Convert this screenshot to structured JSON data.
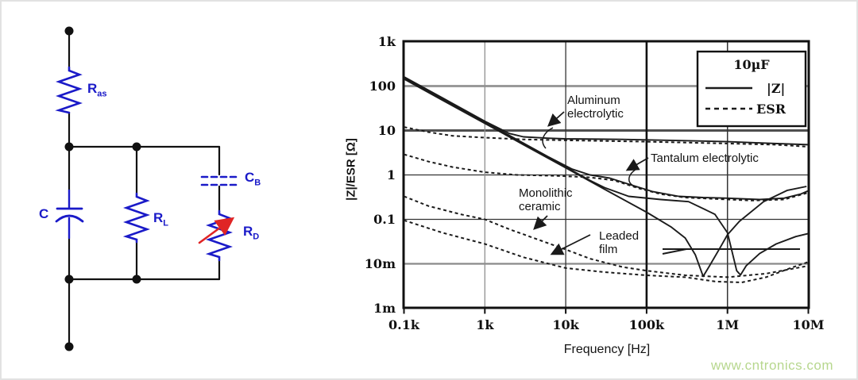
{
  "watermark": "www.cntronics.com",
  "colors": {
    "component_blue": "#1a1ac8",
    "arrow_red": "#e02525",
    "curve_black": "#1b1b1b",
    "watermark_green": "#b7d78e"
  },
  "circuit": {
    "labels": {
      "ras": {
        "main": "R",
        "sub": "as"
      },
      "c": {
        "main": "C",
        "sub": ""
      },
      "rl": {
        "main": "R",
        "sub": "L"
      },
      "cb": {
        "main": "C",
        "sub": "B"
      },
      "rd": {
        "main": "R",
        "sub": "D"
      }
    }
  },
  "chart_data": {
    "type": "line",
    "title": "",
    "xlabel": "Frequency [Hz]",
    "ylabel": "|Z|/ESR [Ω]",
    "x_scale": "log",
    "y_scale": "log",
    "xlim": [
      100,
      10000000
    ],
    "ylim": [
      0.001,
      1000
    ],
    "grid": true,
    "legend": {
      "title": "10µF",
      "items": [
        {
          "label": "|Z|",
          "style": "solid"
        },
        {
          "label": "ESR",
          "style": "dashed"
        }
      ]
    },
    "x_ticks": [
      {
        "label": "0.1k",
        "f": 100
      },
      {
        "label": "1k",
        "f": 1000
      },
      {
        "label": "10k",
        "f": 10000
      },
      {
        "label": "100k",
        "f": 100000
      },
      {
        "label": "1M",
        "f": 1000000
      },
      {
        "label": "10M",
        "f": 10000000
      }
    ],
    "y_ticks": [
      {
        "label": "1k",
        "z": 1000
      },
      {
        "label": "100",
        "z": 100
      },
      {
        "label": "10",
        "z": 10
      },
      {
        "label": "1",
        "z": 1
      },
      {
        "label": "0.1",
        "z": 0.1
      },
      {
        "label": "10m",
        "z": 0.01
      },
      {
        "label": "1m",
        "z": 0.001
      }
    ],
    "annotations": [
      {
        "id": "aluminum",
        "label": "Aluminum electrolytic"
      },
      {
        "id": "tantalum",
        "label": "Tantalum electrolytic"
      },
      {
        "id": "ceramic",
        "label": "Monolithic ceramic"
      },
      {
        "id": "film",
        "label": "Leaded film"
      }
    ],
    "series": [
      {
        "id": "aluminum-z",
        "component": "Aluminum electrolytic",
        "quantity": "|Z|",
        "style": "solid",
        "points": [
          [
            100,
            162
          ],
          [
            300,
            54
          ],
          [
            1000,
            16.2
          ],
          [
            2000,
            8.6
          ],
          [
            3000,
            7.2
          ],
          [
            6000,
            6.7
          ],
          [
            10000,
            6.5
          ],
          [
            50000,
            6.3
          ],
          [
            200000,
            6.0
          ],
          [
            1000000,
            5.6
          ],
          [
            3000000,
            5.2
          ],
          [
            10000000,
            4.8
          ]
        ]
      },
      {
        "id": "aluminum-esr",
        "component": "Aluminum electrolytic",
        "quantity": "ESR",
        "style": "dashed",
        "points": [
          [
            100,
            12
          ],
          [
            200,
            9.2
          ],
          [
            400,
            7.6
          ],
          [
            1000,
            6.9
          ],
          [
            3000,
            6.3
          ],
          [
            10000,
            6.0
          ],
          [
            100000,
            5.6
          ],
          [
            1000000,
            5.1
          ],
          [
            4000000,
            4.8
          ],
          [
            10000000,
            4.3
          ]
        ]
      },
      {
        "id": "tantalum-z",
        "component": "Tantalum electrolytic",
        "quantity": "|Z|",
        "style": "solid",
        "points": [
          [
            100,
            155
          ],
          [
            300,
            51.7
          ],
          [
            1000,
            15.5
          ],
          [
            3000,
            5.2
          ],
          [
            6000,
            2.6
          ],
          [
            12000,
            1.35
          ],
          [
            20000,
            1.0
          ],
          [
            35000,
            0.85
          ],
          [
            60000,
            0.62
          ],
          [
            120000,
            0.42
          ],
          [
            250000,
            0.33
          ],
          [
            500000,
            0.31
          ],
          [
            1000000,
            0.3
          ],
          [
            2500000,
            0.28
          ],
          [
            5000000,
            0.3
          ],
          [
            8000000,
            0.37
          ],
          [
            10000000,
            0.44
          ]
        ]
      },
      {
        "id": "tantalum-esr",
        "component": "Tantalum electrolytic",
        "quantity": "ESR",
        "style": "dashed",
        "points": [
          [
            100,
            2.9
          ],
          [
            200,
            2.0
          ],
          [
            400,
            1.5
          ],
          [
            1000,
            1.15
          ],
          [
            2500,
            1.0
          ],
          [
            8000,
            0.95
          ],
          [
            20000,
            0.88
          ],
          [
            40000,
            0.75
          ],
          [
            80000,
            0.5
          ],
          [
            150000,
            0.37
          ],
          [
            300000,
            0.31
          ],
          [
            800000,
            0.285
          ],
          [
            2000000,
            0.265
          ],
          [
            5000000,
            0.28
          ],
          [
            10000000,
            0.4
          ]
        ]
      },
      {
        "id": "ceramic-z",
        "component": "Monolithic ceramic",
        "quantity": "|Z|",
        "style": "solid",
        "points": [
          [
            100,
            150
          ],
          [
            300,
            50
          ],
          [
            1000,
            15.0
          ],
          [
            3000,
            5.0
          ],
          [
            10000,
            1.5
          ],
          [
            20000,
            0.75
          ],
          [
            30000,
            0.52
          ],
          [
            60000,
            0.33
          ],
          [
            150000,
            0.28
          ],
          [
            330000,
            0.25
          ],
          [
            700000,
            0.13
          ],
          [
            1000000,
            0.05
          ],
          [
            1300000,
            0.007
          ],
          [
            1450000,
            0.0056
          ],
          [
            1700000,
            0.009
          ],
          [
            2500000,
            0.017
          ],
          [
            4000000,
            0.028
          ],
          [
            7000000,
            0.041
          ],
          [
            10000000,
            0.048
          ]
        ]
      },
      {
        "id": "ceramic-esr",
        "component": "Monolithic ceramic",
        "quantity": "ESR",
        "style": "dashed",
        "points": [
          [
            100,
            0.33
          ],
          [
            200,
            0.2
          ],
          [
            500,
            0.13
          ],
          [
            1000,
            0.1
          ],
          [
            2000,
            0.06
          ],
          [
            5000,
            0.033
          ],
          [
            10000,
            0.021
          ],
          [
            20000,
            0.013
          ],
          [
            50000,
            0.0085
          ],
          [
            100000,
            0.007
          ],
          [
            300000,
            0.0055
          ],
          [
            1000000,
            0.005
          ],
          [
            3000000,
            0.006
          ],
          [
            10000000,
            0.009
          ]
        ]
      },
      {
        "id": "film-z",
        "component": "Leaded film",
        "quantity": "|Z|",
        "style": "solid",
        "points": [
          [
            100,
            145
          ],
          [
            300,
            48
          ],
          [
            1000,
            14.5
          ],
          [
            3000,
            4.8
          ],
          [
            10000,
            1.45
          ],
          [
            30000,
            0.48
          ],
          [
            100000,
            0.145
          ],
          [
            200000,
            0.068
          ],
          [
            300000,
            0.038
          ],
          [
            400000,
            0.016
          ],
          [
            500000,
            0.0052
          ],
          [
            600000,
            0.009
          ],
          [
            800000,
            0.022
          ],
          [
            1000000,
            0.045
          ],
          [
            1400000,
            0.09
          ],
          [
            2800000,
            0.25
          ],
          [
            5500000,
            0.45
          ],
          [
            9500000,
            0.55
          ]
        ]
      },
      {
        "id": "film-esr",
        "component": "Leaded film",
        "quantity": "ESR",
        "style": "dashed",
        "points": [
          [
            100,
            0.095
          ],
          [
            300,
            0.05
          ],
          [
            1000,
            0.028
          ],
          [
            3000,
            0.014
          ],
          [
            10000,
            0.008
          ],
          [
            30000,
            0.0065
          ],
          [
            100000,
            0.0055
          ],
          [
            300000,
            0.005
          ],
          [
            700000,
            0.004
          ],
          [
            1500000,
            0.0038
          ],
          [
            3000000,
            0.005
          ],
          [
            6000000,
            0.008
          ],
          [
            10000000,
            0.011
          ]
        ]
      }
    ]
  }
}
